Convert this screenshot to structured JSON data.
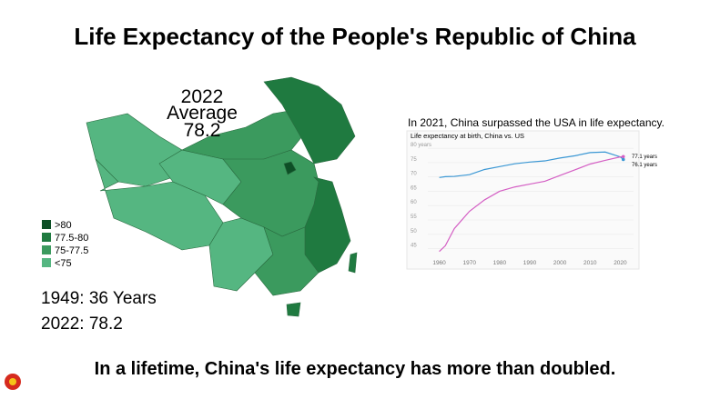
{
  "title": "Life Expectancy of the People's Republic of China",
  "map": {
    "annotation": [
      "2022",
      "Average",
      "78.2"
    ],
    "legend": [
      {
        "label": ">80",
        "color": "#0d4f26"
      },
      {
        "label": "77.5-80",
        "color": "#1f7a40"
      },
      {
        "label": "75-77.5",
        "color": "#3b9a5e"
      },
      {
        "label": "<75",
        "color": "#55b681"
      }
    ],
    "notes": [
      "1949: 36 Years",
      "2022: 78.2"
    ]
  },
  "caption": "In 2021, China surpassed the USA in life expectancy.",
  "chart_data": {
    "type": "line",
    "title": "Life expectancy at birth, China vs. US",
    "x": [
      1960,
      1962,
      1965,
      1970,
      1975,
      1980,
      1985,
      1990,
      1995,
      2000,
      2005,
      2010,
      2015,
      2020,
      2021
    ],
    "series": [
      {
        "name": "US",
        "color": "#3a97d4",
        "values": [
          69.8,
          70.1,
          70.2,
          70.8,
          72.6,
          73.6,
          74.6,
          75.2,
          75.6,
          76.6,
          77.4,
          78.5,
          78.7,
          77.0,
          76.1
        ]
      },
      {
        "name": "China",
        "color": "#d45fc4",
        "values": [
          44,
          46,
          52,
          58,
          62,
          65,
          66.5,
          67.5,
          68.5,
          70.5,
          72.5,
          74.5,
          75.8,
          77.0,
          77.1
        ]
      }
    ],
    "annotations": [
      "77.1 years",
      "76.1 years"
    ],
    "xlim": [
      1955,
      2025
    ],
    "xticks": [
      1960,
      1970,
      1980,
      1990,
      2000,
      2010,
      2020
    ],
    "ylim": [
      42,
      81
    ],
    "yticks": [
      45,
      50,
      55,
      60,
      65,
      70,
      75,
      {
        "value": 80,
        "label": "80 years"
      }
    ],
    "grid": true
  },
  "footer": "In a lifetime, China's life expectancy has more than doubled."
}
